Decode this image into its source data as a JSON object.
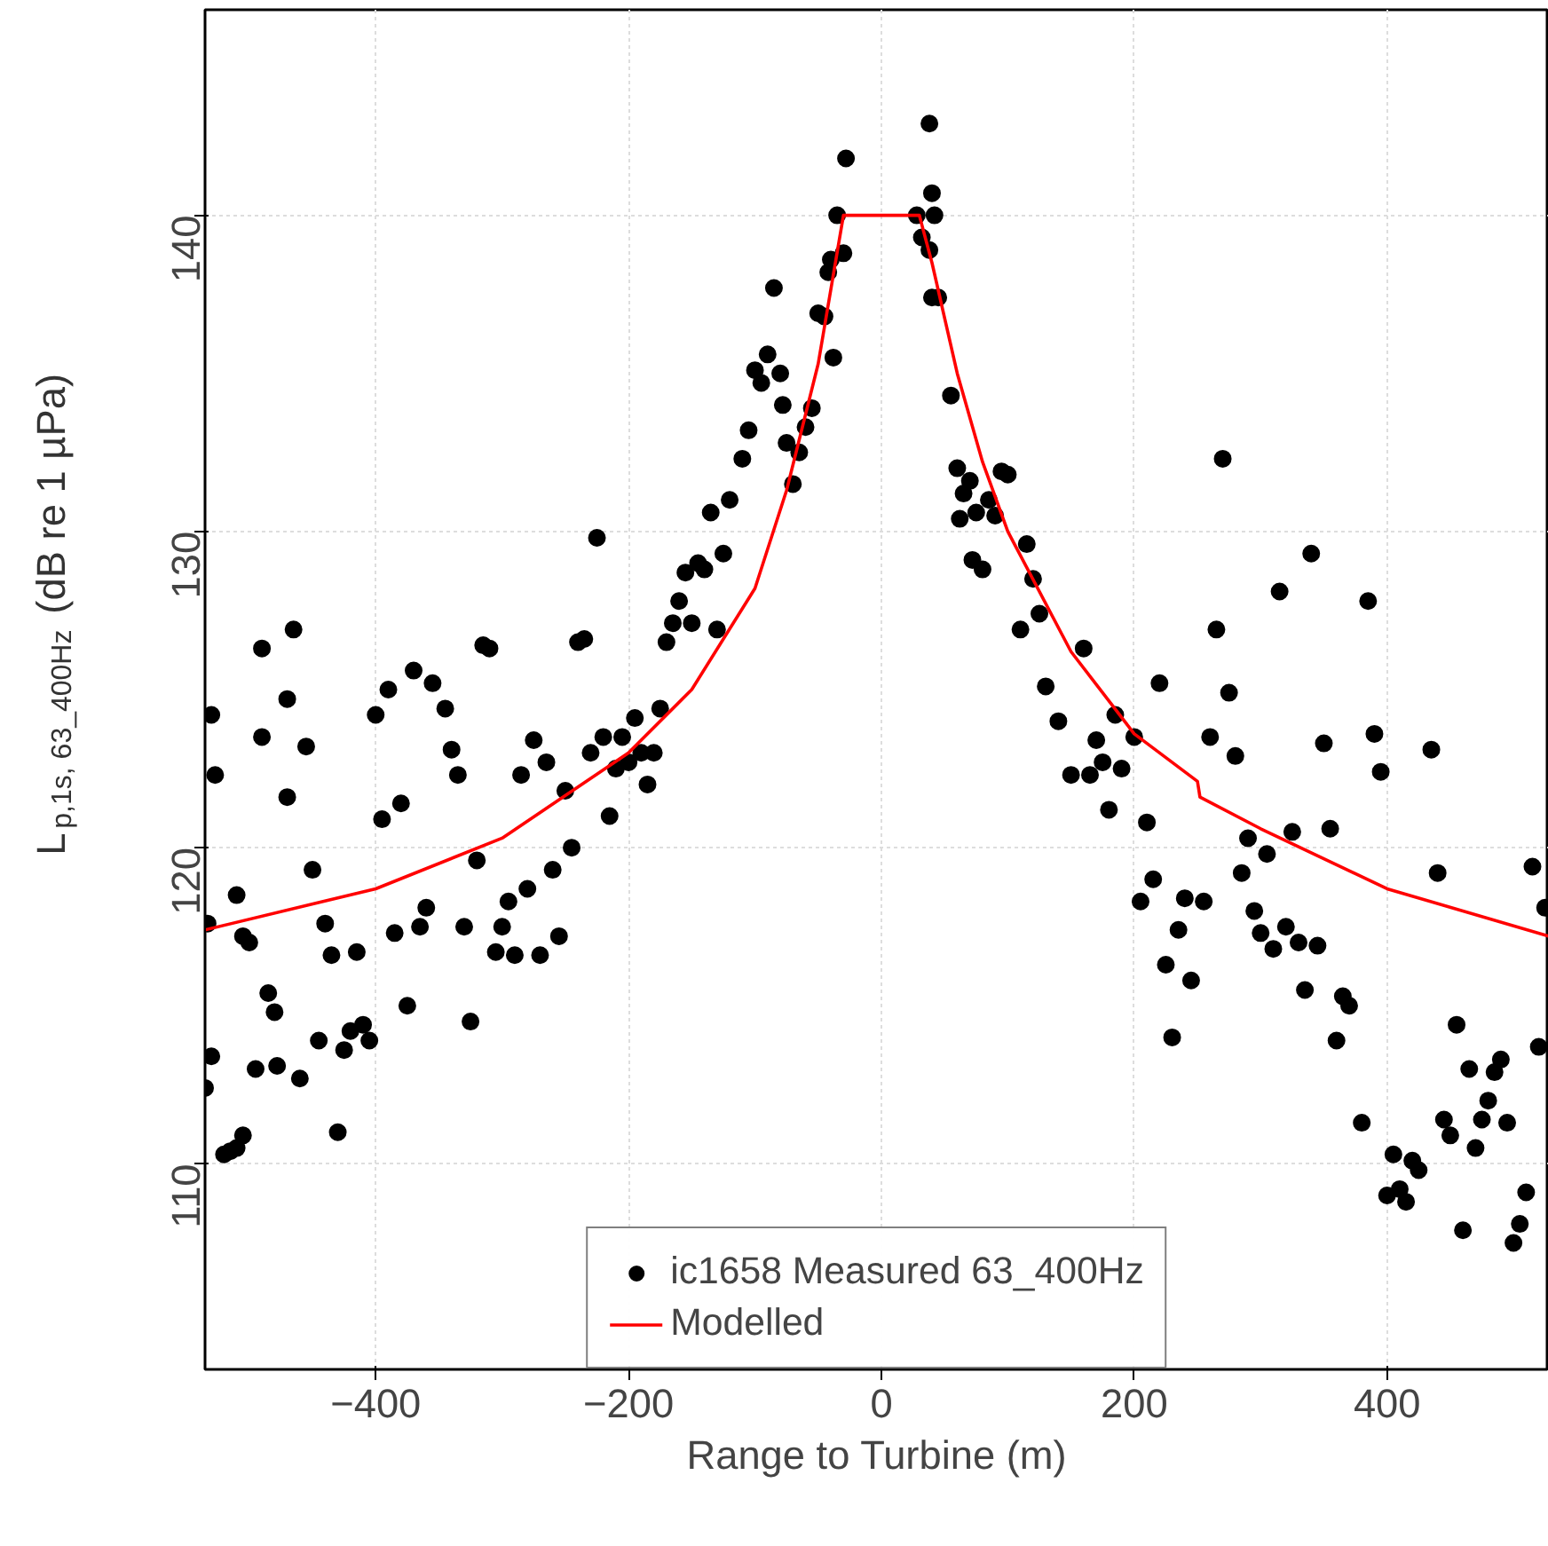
{
  "chart_data": {
    "type": "scatter",
    "xlabel": "Range to Turbine (m)",
    "ylabel": "L$_{p,1s, 63_400Hz}$ (dB re 1 µPa)",
    "xlim": [
      -535,
      528
    ],
    "ylim": [
      103.5,
      146.5
    ],
    "xticks": [
      -400,
      -200,
      0,
      200,
      400
    ],
    "yticks": [
      110,
      120,
      130,
      140
    ],
    "grid": true,
    "legend": "bottom",
    "series": [
      {
        "name": "ic1658 Measured 63_400Hz",
        "color": "#000000",
        "marker": "circle",
        "x": [
          -530,
          -527,
          -533,
          -530,
          -535,
          -520,
          -515,
          -510,
          -505,
          -510,
          -505,
          -500,
          -495,
          -490,
          -490,
          -485,
          -480,
          -478,
          -470,
          -470,
          -465,
          -460,
          -455,
          -450,
          -445,
          -440,
          -435,
          -430,
          -425,
          -420,
          -415,
          -410,
          -405,
          -400,
          -395,
          -390,
          -385,
          -380,
          -375,
          -370,
          -365,
          -360,
          -355,
          -345,
          -340,
          -335,
          -330,
          -325,
          -320,
          -315,
          -310,
          -305,
          -300,
          -295,
          -290,
          -285,
          -280,
          -275,
          -270,
          -265,
          -260,
          -255,
          -250,
          -245,
          -240,
          -235,
          -230,
          -225,
          -220,
          -215,
          -210,
          -205,
          -200,
          -195,
          -190,
          -185,
          -180,
          -175,
          -170,
          -165,
          -160,
          -155,
          -150,
          -145,
          -140,
          -135,
          -130,
          -125,
          -120,
          -110,
          -105,
          -100,
          -95,
          -90,
          -85,
          -80,
          -78,
          -75,
          -70,
          -65,
          -60,
          -55,
          -50,
          -45,
          -42,
          -40,
          -38,
          -35,
          -30,
          -28,
          28,
          32,
          38,
          40,
          38,
          42,
          40,
          45,
          55,
          60,
          65,
          62,
          70,
          75,
          80,
          72,
          85,
          90,
          95,
          100,
          110,
          115,
          120,
          125,
          130,
          140,
          150,
          160,
          165,
          170,
          175,
          180,
          185,
          190,
          200,
          205,
          210,
          215,
          220,
          225,
          230,
          235,
          240,
          245,
          255,
          260,
          265,
          270,
          275,
          280,
          285,
          290,
          295,
          300,
          305,
          310,
          315,
          320,
          325,
          330,
          335,
          340,
          345,
          350,
          355,
          360,
          365,
          370,
          380,
          385,
          390,
          395,
          400,
          405,
          410,
          415,
          420,
          425,
          435,
          440,
          445,
          450,
          455,
          460,
          465,
          470,
          475,
          480,
          485,
          490,
          495,
          500,
          505,
          510,
          515,
          520,
          525
        ],
        "values": [
          124.2,
          122.3,
          117.6,
          113.4,
          112.4,
          110.3,
          110.4,
          110.5,
          110.9,
          118.5,
          117.2,
          117.0,
          113.0,
          126.3,
          123.5,
          115.4,
          114.8,
          113.1,
          121.6,
          124.7,
          126.9,
          112.7,
          123.2,
          119.3,
          113.9,
          117.6,
          116.6,
          111.0,
          113.6,
          114.2,
          116.7,
          114.4,
          113.9,
          124.2,
          120.9,
          125.0,
          117.3,
          121.4,
          115.0,
          125.6,
          117.5,
          118.1,
          125.2,
          124.4,
          123.1,
          122.3,
          117.5,
          114.5,
          119.6,
          126.4,
          126.3,
          116.7,
          117.5,
          118.3,
          116.6,
          122.3,
          118.7,
          123.4,
          116.6,
          122.7,
          119.3,
          117.2,
          121.8,
          120.0,
          126.5,
          126.6,
          123.0,
          129.8,
          123.5,
          121.0,
          122.5,
          123.5,
          122.7,
          124.1,
          123.0,
          122.0,
          123.0,
          124.4,
          126.5,
          127.1,
          127.8,
          128.7,
          127.1,
          129.0,
          128.8,
          130.6,
          126.9,
          129.3,
          131.0,
          132.3,
          133.2,
          135.1,
          134.7,
          135.6,
          137.7,
          135.0,
          134.0,
          132.8,
          131.5,
          132.5,
          133.3,
          133.9,
          136.9,
          136.8,
          138.2,
          138.6,
          135.5,
          140.0,
          138.8,
          141.8,
          140.0,
          139.3,
          142.9,
          140.7,
          138.9,
          140.0,
          137.4,
          137.4,
          134.3,
          132.0,
          131.2,
          130.4,
          131.6,
          130.6,
          128.8,
          129.1,
          131.0,
          130.5,
          131.9,
          131.8,
          126.9,
          129.6,
          128.5,
          127.4,
          125.1,
          124.0,
          122.3,
          126.3,
          122.3,
          123.4,
          122.7,
          121.2,
          124.2,
          122.5,
          123.5,
          118.3,
          120.8,
          119.0,
          125.2,
          116.3,
          114.0,
          117.4,
          118.4,
          115.8,
          118.3,
          123.5,
          126.9,
          132.3,
          124.9,
          122.9,
          119.2,
          120.3,
          118.0,
          117.3,
          119.8,
          116.8,
          128.1,
          117.5,
          120.5,
          117.0,
          115.5,
          129.3,
          116.9,
          123.3,
          120.6,
          113.9,
          115.3,
          115.0,
          111.3,
          127.8,
          123.6,
          122.4,
          109.0,
          110.3,
          109.2,
          108.8,
          110.1,
          109.8,
          123.1,
          119.2,
          111.4,
          110.9,
          114.4,
          107.9,
          113.0,
          110.5,
          111.4,
          112.0,
          112.9,
          113.3,
          111.3,
          107.5,
          108.1,
          109.1,
          119.4,
          113.7,
          118.1
        ]
      },
      {
        "name": "Modelled",
        "color": "#ff0000",
        "type": "line",
        "marker": "none",
        "x": [
          -535,
          -400,
          -300,
          -200,
          -150,
          -100,
          -75,
          -50,
          -30,
          30,
          40,
          60,
          80,
          100,
          150,
          200,
          250,
          252,
          300,
          400,
          528
        ],
        "values": [
          117.4,
          118.7,
          120.3,
          123.0,
          125.0,
          128.2,
          131.3,
          135.3,
          140.0,
          140.0,
          138.5,
          135.0,
          132.2,
          130.0,
          126.2,
          123.6,
          122.1,
          121.6,
          120.6,
          118.7,
          117.2
        ]
      }
    ]
  }
}
